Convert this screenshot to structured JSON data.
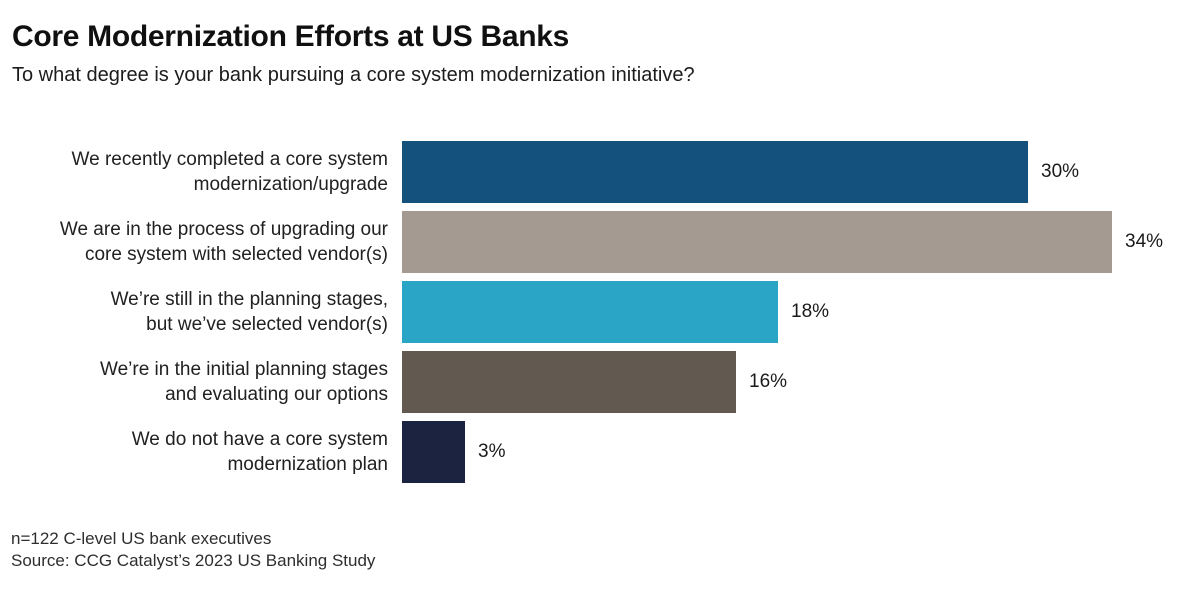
{
  "header": {
    "title": "Core Modernization Efforts at US Banks",
    "subtitle": "To what degree is your bank pursuing a core system modernization initiative?"
  },
  "chart_data": {
    "type": "bar",
    "orientation": "horizontal",
    "title": "Core Modernization Efforts at US Banks",
    "subtitle": "To what degree is your bank pursuing a core system modernization initiative?",
    "categories": [
      "We recently completed a core system modernization/upgrade",
      "We are in the process of upgrading our core system with selected vendor(s)",
      "We’re still in the planning stages, but we’ve selected vendor(s)",
      "We’re in the initial planning stages and evaluating our options",
      "We do not have a core system modernization plan"
    ],
    "category_lines": [
      [
        "We recently completed a core system",
        "modernization/upgrade"
      ],
      [
        "We are in the process of upgrading our",
        "core system with selected vendor(s)"
      ],
      [
        "We’re still in the planning stages,",
        "but we’ve selected vendor(s)"
      ],
      [
        "We’re in the initial planning stages",
        "and evaluating our options"
      ],
      [
        "We do not have a core system",
        "modernization plan"
      ]
    ],
    "values": [
      30,
      34,
      18,
      16,
      3
    ],
    "value_labels": [
      "30%",
      "34%",
      "18%",
      "16%",
      "3%"
    ],
    "bar_colors": [
      "#15517d",
      "#a49a92",
      "#2aa5c6",
      "#625a51",
      "#1b2340"
    ],
    "xlim": [
      0,
      38
    ],
    "grid": false,
    "legend": false
  },
  "footer": {
    "note": "n=122 C-level US bank executives",
    "source": "Source: CCG Catalyst’s 2023 US Banking Study"
  }
}
